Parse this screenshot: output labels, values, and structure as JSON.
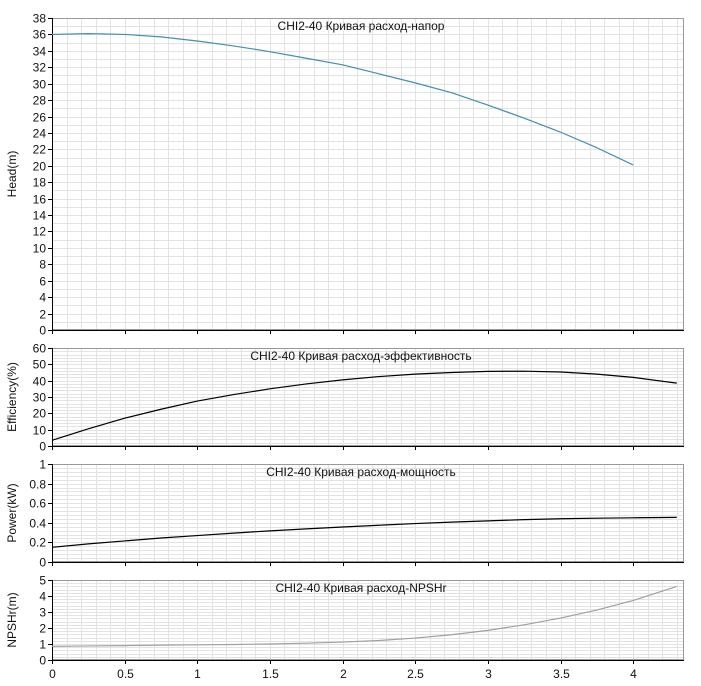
{
  "chart_data": [
    {
      "type": "line",
      "title": "CHI2-40 Кривая расход-напор",
      "xlabel": "",
      "ylabel": "Head(m)",
      "xlim": [
        0,
        4.35
      ],
      "ylim": [
        0,
        38
      ],
      "yticks": [
        0,
        2,
        4,
        6,
        8,
        10,
        12,
        14,
        16,
        18,
        20,
        22,
        24,
        26,
        28,
        30,
        32,
        34,
        36,
        38
      ],
      "grid": true,
      "color": "#3f8fb3",
      "x": [
        0,
        0.25,
        0.5,
        0.75,
        1,
        1.25,
        1.5,
        1.75,
        2,
        2.25,
        2.5,
        2.75,
        3,
        3.25,
        3.5,
        3.75,
        4
      ],
      "y": [
        36.0,
        36.1,
        36.0,
        35.7,
        35.2,
        34.6,
        33.9,
        33.1,
        32.3,
        31.2,
        30.1,
        28.9,
        27.4,
        25.8,
        24.1,
        22.2,
        20.1
      ]
    },
    {
      "type": "line",
      "title": "CHI2-40 Кривая расход-эффективность",
      "xlabel": "",
      "ylabel": "Efficiency(%)",
      "xlim": [
        0,
        4.35
      ],
      "ylim": [
        0,
        60
      ],
      "yticks": [
        0,
        10,
        20,
        30,
        40,
        50,
        60
      ],
      "grid": true,
      "color": "#000000",
      "x": [
        0,
        0.25,
        0.5,
        0.75,
        1,
        1.25,
        1.5,
        1.75,
        2,
        2.25,
        2.5,
        2.75,
        3,
        3.25,
        3.5,
        3.75,
        4,
        4.3
      ],
      "y": [
        3.5,
        10.5,
        17,
        22.5,
        27.5,
        31.5,
        35,
        38,
        40.5,
        42.5,
        44,
        45,
        45.7,
        45.8,
        45.3,
        44,
        42,
        38.5
      ]
    },
    {
      "type": "line",
      "title": "CHI2-40 Кривая расход-мощность",
      "xlabel": "",
      "ylabel": "Power(kW)",
      "xlim": [
        0,
        4.35
      ],
      "ylim": [
        0,
        1
      ],
      "yticks": [
        0,
        0.2,
        0.4,
        0.6,
        0.8,
        1
      ],
      "grid": true,
      "color": "#000000",
      "x": [
        0,
        0.25,
        0.5,
        0.75,
        1,
        1.25,
        1.5,
        1.75,
        2,
        2.25,
        2.5,
        2.75,
        3,
        3.25,
        3.5,
        3.75,
        4,
        4.3
      ],
      "y": [
        0.15,
        0.185,
        0.215,
        0.245,
        0.27,
        0.295,
        0.318,
        0.338,
        0.357,
        0.375,
        0.392,
        0.407,
        0.42,
        0.432,
        0.441,
        0.447,
        0.451,
        0.455
      ]
    },
    {
      "type": "line",
      "title": "CHI2-40 Кривая расход-NPSHr",
      "xlabel": "",
      "ylabel": "NPSHr(m)",
      "xlim": [
        0,
        4.35
      ],
      "ylim": [
        0,
        5
      ],
      "yticks": [
        0,
        1,
        2,
        3,
        4,
        5
      ],
      "xticks": [
        0,
        0.5,
        1,
        1.5,
        2,
        2.5,
        3,
        3.5,
        4
      ],
      "grid": true,
      "color": "#a0a0a0",
      "x": [
        0,
        0.25,
        0.5,
        0.75,
        1,
        1.25,
        1.5,
        1.75,
        2,
        2.25,
        2.5,
        2.75,
        3,
        3.25,
        3.5,
        3.75,
        4,
        4.3
      ],
      "y": [
        0.85,
        0.88,
        0.9,
        0.93,
        0.95,
        0.97,
        1.0,
        1.05,
        1.12,
        1.22,
        1.37,
        1.58,
        1.85,
        2.2,
        2.62,
        3.12,
        3.72,
        4.6
      ]
    }
  ]
}
